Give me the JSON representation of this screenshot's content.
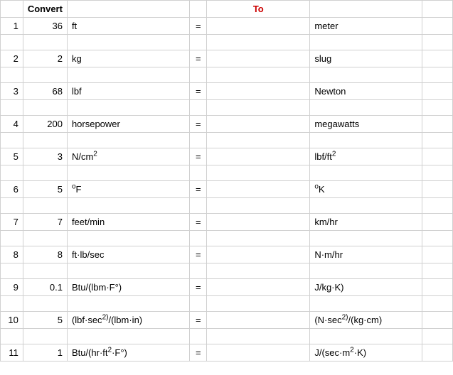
{
  "headers": {
    "convert": "Convert",
    "to": "To"
  },
  "rows": [
    {
      "idx": "1",
      "val": "36",
      "from_html": "ft",
      "to_html": "meter"
    },
    {
      "idx": "2",
      "val": "2",
      "from_html": "kg",
      "to_html": "slug"
    },
    {
      "idx": "3",
      "val": "68",
      "from_html": "lbf",
      "to_html": "Newton"
    },
    {
      "idx": "4",
      "val": "200",
      "from_html": "horsepower",
      "to_html": "megawatts"
    },
    {
      "idx": "5",
      "val": "3",
      "from_html": "N/cm<sup>2</sup>",
      "to_html": "lbf/ft<sup>2</sup>"
    },
    {
      "idx": "6",
      "val": "5",
      "from_html": "<sup>o</sup>F",
      "to_html": "<sup>o</sup>K"
    },
    {
      "idx": "7",
      "val": "7",
      "from_html": "feet/min",
      "to_html": "km/hr"
    },
    {
      "idx": "8",
      "val": "8",
      "from_html": "ft·lb/sec",
      "to_html": "N·m/hr"
    },
    {
      "idx": "9",
      "val": "0.1",
      "from_html": "Btu/(lbm·F°)",
      "to_html": "J/kg·K)"
    },
    {
      "idx": "10",
      "val": "5",
      "from_html": "(lbf·sec<sup>2)</sup>/(lbm·in)",
      "to_html": "(N·sec<sup>2)</sup>/(kg·cm)"
    },
    {
      "idx": "11",
      "val": "1",
      "from_html": "Btu/(hr·ft<sup>2</sup>·F°)",
      "to_html": "J/(sec·m<sup>2</sup>·K)"
    }
  ],
  "equals": "=",
  "colors": {
    "header_text": "#cc0000",
    "border": "#d0d0d0",
    "text": "#000000",
    "background": "#ffffff"
  }
}
